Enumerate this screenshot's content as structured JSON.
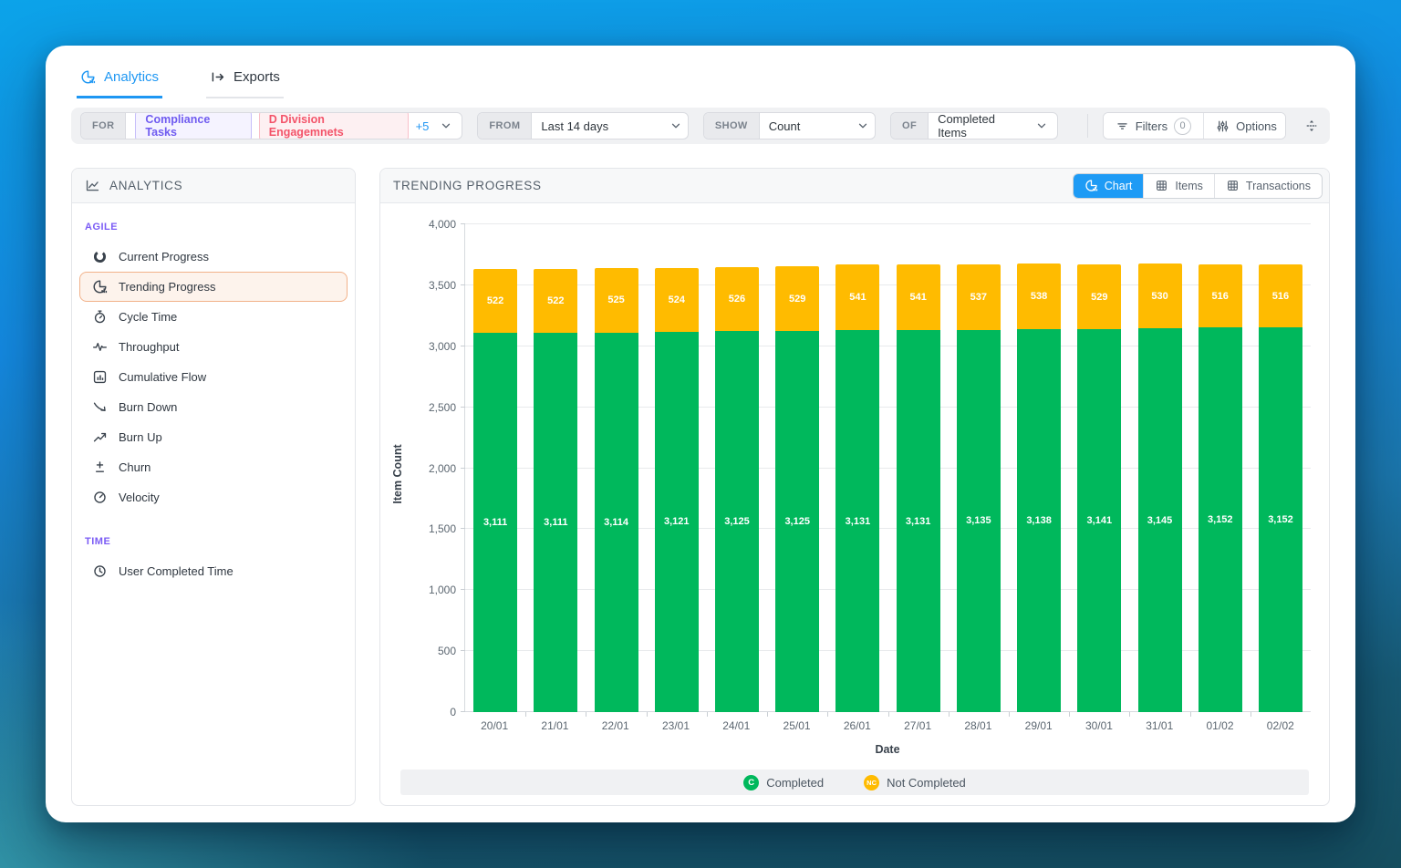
{
  "tabs": [
    {
      "label": "Analytics"
    },
    {
      "label": "Exports"
    }
  ],
  "filter_bar": {
    "for_label": "FOR",
    "chips": [
      {
        "label": "Compliance Tasks",
        "color": "purple"
      },
      {
        "label": "D Division Engagemnets",
        "color": "red"
      }
    ],
    "more_count": "+5",
    "from_label": "FROM",
    "from_value": "Last 14 days",
    "show_label": "SHOW",
    "show_value": "Count",
    "of_label": "OF",
    "of_value": "Completed Items",
    "filters_label": "Filters",
    "filters_count": "0",
    "options_label": "Options"
  },
  "sidebar": {
    "title": "ANALYTICS",
    "sections": [
      {
        "label": "AGILE",
        "items": [
          {
            "label": "Current Progress",
            "icon": "progress-circle-icon",
            "selected": false
          },
          {
            "label": "Trending Progress",
            "icon": "pie-bars-icon",
            "selected": true
          },
          {
            "label": "Cycle Time",
            "icon": "stopwatch-icon",
            "selected": false
          },
          {
            "label": "Throughput",
            "icon": "pulse-icon",
            "selected": false
          },
          {
            "label": "Cumulative Flow",
            "icon": "chart-panel-icon",
            "selected": false
          },
          {
            "label": "Burn Down",
            "icon": "arrow-trend-down-icon",
            "selected": false
          },
          {
            "label": "Burn Up",
            "icon": "arrow-trend-up-icon",
            "selected": false
          },
          {
            "label": "Churn",
            "icon": "plus-minus-icon",
            "selected": false
          },
          {
            "label": "Velocity",
            "icon": "gauge-icon",
            "selected": false
          }
        ]
      },
      {
        "label": "TIME",
        "items": [
          {
            "label": "User Completed Time",
            "icon": "clock-icon",
            "selected": false
          }
        ]
      }
    ]
  },
  "main": {
    "title": "TRENDING PROGRESS",
    "view_tabs": [
      {
        "label": "Chart",
        "active": true
      },
      {
        "label": "Items",
        "active": false
      },
      {
        "label": "Transactions",
        "active": false
      }
    ]
  },
  "chart_data": {
    "type": "bar",
    "stacked": true,
    "categories": [
      "20/01",
      "21/01",
      "22/01",
      "23/01",
      "24/01",
      "25/01",
      "26/01",
      "27/01",
      "28/01",
      "29/01",
      "30/01",
      "31/01",
      "01/02",
      "02/02"
    ],
    "series": [
      {
        "name": "Completed",
        "abbr": "C",
        "color": "#00b85c",
        "values": [
          3111,
          3111,
          3114,
          3121,
          3125,
          3125,
          3131,
          3131,
          3135,
          3138,
          3141,
          3145,
          3152,
          3152
        ]
      },
      {
        "name": "Not Completed",
        "abbr": "NC",
        "color": "#ffbb00",
        "values": [
          522,
          522,
          525,
          524,
          526,
          529,
          541,
          541,
          537,
          538,
          529,
          530,
          516,
          516
        ]
      }
    ],
    "title": "TRENDING PROGRESS",
    "xlabel": "Date",
    "ylabel": "Item Count",
    "ylim": [
      0,
      4000
    ],
    "ytick_step": 500,
    "grid": true,
    "legend_position": "bottom"
  },
  "colors": {
    "accent_blue": "#1e9bf5",
    "completed_green": "#00b85c",
    "not_completed_yellow": "#ffbb00",
    "selected_item_border": "#f2b28a"
  }
}
